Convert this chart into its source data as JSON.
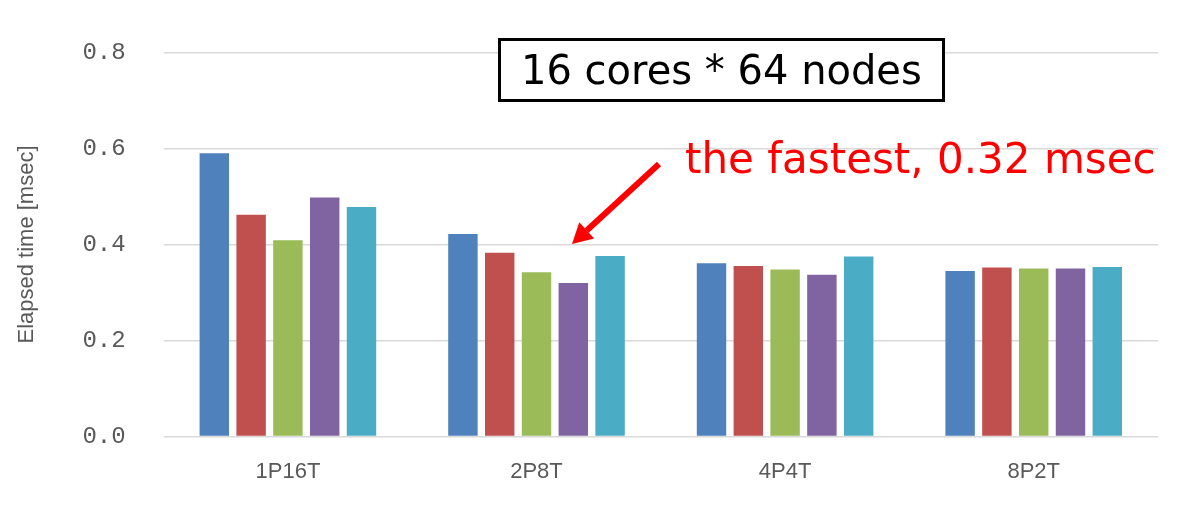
{
  "chart_data": {
    "type": "bar",
    "ylabel": "Elapsed time [msec]",
    "categories": [
      "1P16T",
      "2P8T",
      "4P4T",
      "8P2T"
    ],
    "series": [
      {
        "color": "#4f81bd",
        "values": [
          0.59,
          0.422,
          0.361,
          0.345
        ]
      },
      {
        "color": "#c0504d",
        "values": [
          0.462,
          0.383,
          0.355,
          0.352
        ]
      },
      {
        "color": "#9bbb59",
        "values": [
          0.409,
          0.342,
          0.348,
          0.35
        ]
      },
      {
        "color": "#8064a2",
        "values": [
          0.498,
          0.32,
          0.337,
          0.35
        ]
      },
      {
        "color": "#4bacc6",
        "values": [
          0.478,
          0.376,
          0.375,
          0.353
        ]
      }
    ],
    "ylim": [
      0,
      0.8
    ],
    "yticks": [
      {
        "value": 0,
        "label": "0.0"
      },
      {
        "value": 0.2,
        "label": "0.2"
      },
      {
        "value": 0.4,
        "label": "0.4"
      },
      {
        "value": 0.6,
        "label": "0.6"
      },
      {
        "value": 0.8,
        "label": "0.8"
      }
    ],
    "grid": "y",
    "legend": false,
    "annotations": [
      "16 cores * 64 nodes",
      "the fastest, 0.32 msec"
    ]
  }
}
